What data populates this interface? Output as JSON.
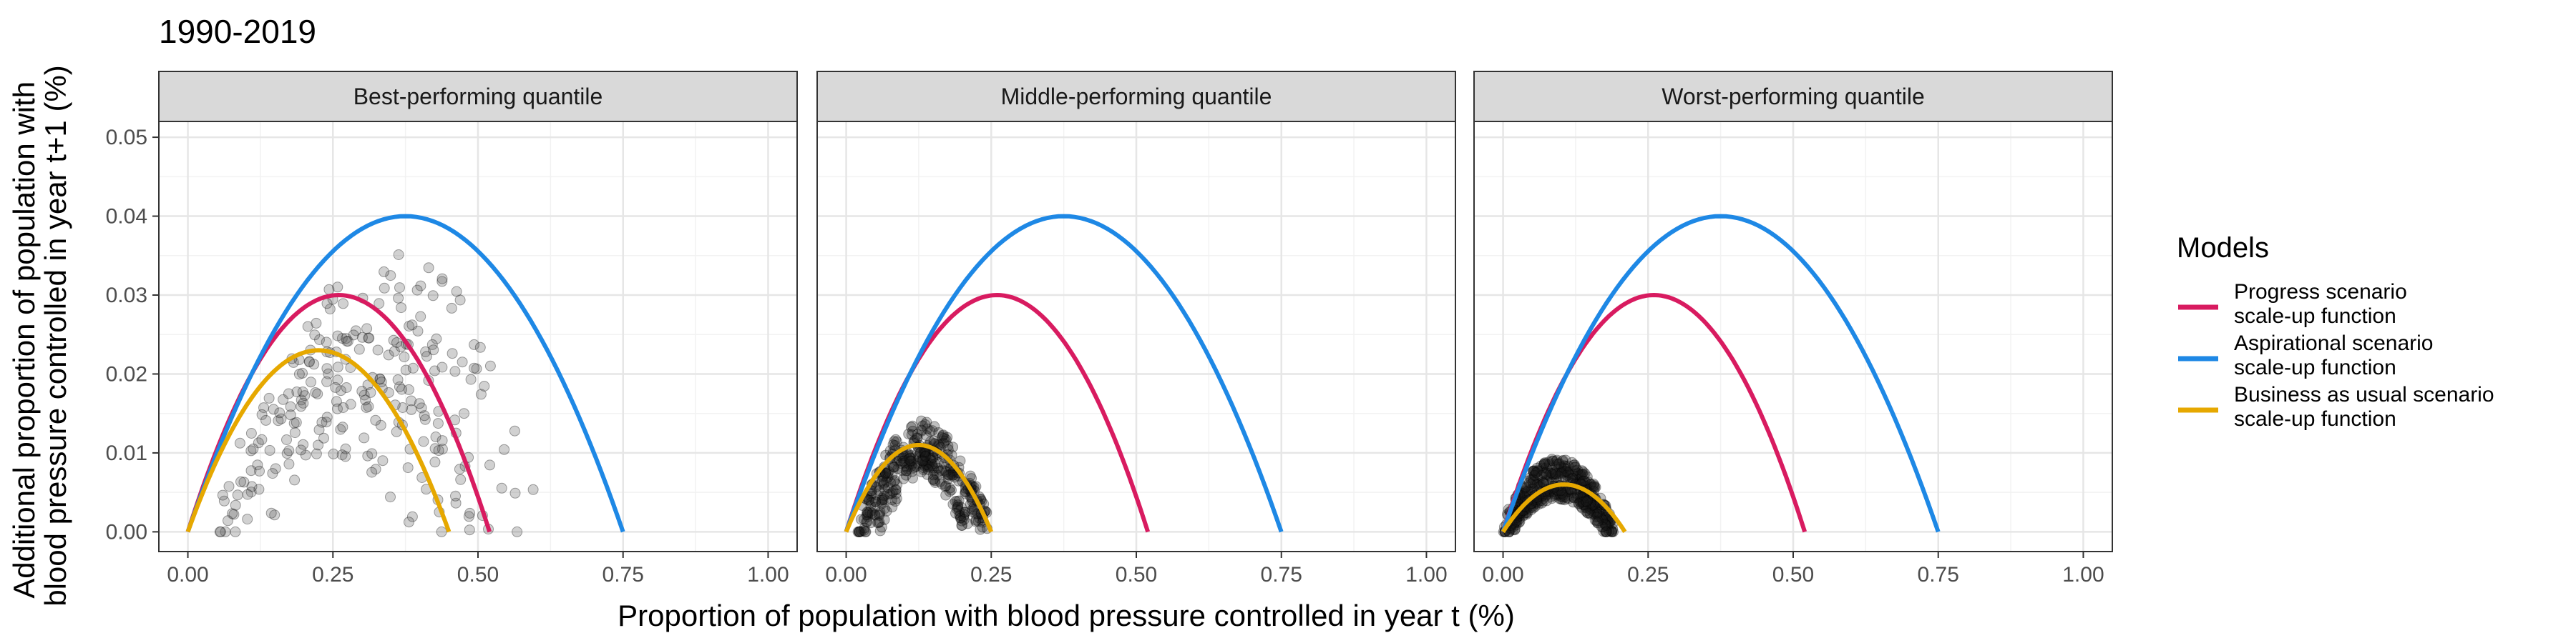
{
  "chart_data": {
    "type": "scatter",
    "title": "1990-2019",
    "xlabel": "Proportion of population with blood pressure controlled in year t (%)",
    "ylabel_lines": [
      "Additional proportion of population with",
      "blood pressure controlled in year t+1 (%)"
    ],
    "xlim": [
      -0.05,
      1.05
    ],
    "ylim": [
      -0.0025,
      0.052
    ],
    "x_ticks": [
      0,
      0.25,
      0.5,
      0.75,
      1
    ],
    "x_tick_labels": [
      "0.00",
      "0.25",
      "0.50",
      "0.75",
      "1.00"
    ],
    "y_ticks": [
      0,
      0.01,
      0.02,
      0.03,
      0.04,
      0.05
    ],
    "y_tick_labels": [
      "0.00",
      "0.01",
      "0.02",
      "0.03",
      "0.04",
      "0.05"
    ],
    "grid": true,
    "legend": {
      "title": "Models",
      "position": "right",
      "entries": [
        {
          "lines": [
            "Progress scenario",
            "scale-up function"
          ],
          "color": "#d81b60"
        },
        {
          "lines": [
            "Aspirational scenario",
            "scale-up function"
          ],
          "color": "#1e88e5"
        },
        {
          "lines": [
            "Business as usual scenario",
            "scale-up function"
          ],
          "color": "#e6a800"
        }
      ]
    },
    "series": [
      {
        "key": "progress",
        "color": "#d81b60",
        "function": "parabola",
        "root": 0.52,
        "peak": 0.03
      },
      {
        "key": "aspirational",
        "color": "#1e88e5",
        "function": "parabola",
        "root": 0.75,
        "peak": 0.04
      }
    ],
    "panels": [
      {
        "label": "Best-performing quantile",
        "bau_curve": {
          "color": "#e6a800",
          "root": 0.45,
          "peak": 0.023
        },
        "points_color": "#595959",
        "point_clusters": [
          {
            "x0": 0.07,
            "x1": 0.52,
            "peak": 0.022,
            "n": 55
          },
          {
            "x0": 0.06,
            "x1": 0.58,
            "peak": 0.026,
            "n": 55
          },
          {
            "x0": 0.09,
            "x1": 0.61,
            "peak": 0.031,
            "n": 45
          },
          {
            "x0": 0.05,
            "x1": 0.44,
            "peak": 0.021,
            "n": 40
          },
          {
            "x0": 0.12,
            "x1": 0.5,
            "peak": 0.017,
            "n": 35
          },
          {
            "x0": 0.08,
            "x1": 0.4,
            "peak": 0.012,
            "n": 25
          }
        ]
      },
      {
        "label": "Middle-performing quantile",
        "bau_curve": {
          "color": "#e6a800",
          "root": 0.25,
          "peak": 0.011
        },
        "points_color": "#1a1a1a",
        "point_clusters": [
          {
            "x0": 0.02,
            "x1": 0.24,
            "peak": 0.012,
            "n": 160
          },
          {
            "x0": 0.03,
            "x1": 0.21,
            "peak": 0.009,
            "n": 140
          },
          {
            "x0": 0.05,
            "x1": 0.25,
            "peak": 0.0095,
            "n": 80
          }
        ]
      },
      {
        "label": "Worst-performing quantile",
        "bau_curve": {
          "color": "#e6a800",
          "root": 0.21,
          "peak": 0.006
        },
        "points_color": "#1a1a1a",
        "point_clusters": [
          {
            "x0": 0.0,
            "x1": 0.19,
            "peak": 0.008,
            "n": 280
          },
          {
            "x0": 0.01,
            "x1": 0.18,
            "peak": 0.005,
            "n": 220
          }
        ]
      }
    ]
  }
}
